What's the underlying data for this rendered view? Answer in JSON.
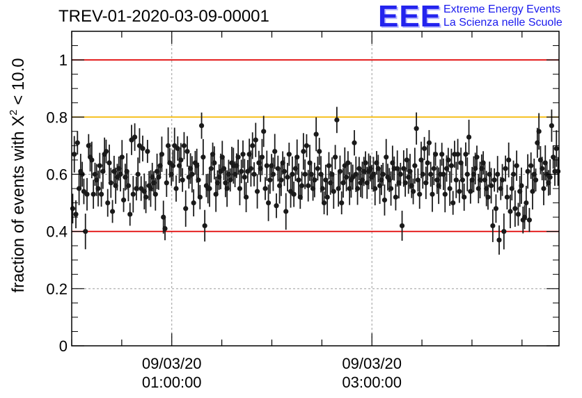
{
  "header": {
    "run_title": "TREV-01-2020-03-09-00001",
    "logo_mark": "EEE",
    "logo_line1": "Extreme Energy Events",
    "logo_line2": "La Scienza nelle Scuole"
  },
  "colors": {
    "red_line": "#e00000",
    "orange_line": "#f5b800",
    "marker": "#1a1a1a",
    "grid": "#9a9a9a"
  },
  "chart_data": {
    "type": "scatter",
    "title": "TREV-01-2020-03-09-00001",
    "ylabel_prefix": "fraction of events with ",
    "ylabel_symbol": "X",
    "ylabel_sup": "2",
    "ylabel_suffix": " < 10.0",
    "xlabel": "",
    "ylim": [
      0,
      1.1
    ],
    "xlim": [
      0,
      4.87
    ],
    "x_unit": "hours after 09/03/20 00:00",
    "yticks": [
      0,
      0.2,
      0.4,
      0.6,
      0.8,
      1
    ],
    "ytick_labels": [
      "0",
      "0.2",
      "0.4",
      "0.6",
      "0.8",
      "1"
    ],
    "xticks_major": [
      {
        "x": 1,
        "date": "09/03/20",
        "time": "01:00:00"
      },
      {
        "x": 3,
        "date": "09/03/20",
        "time": "03:00:00"
      }
    ],
    "grid": true,
    "reference_lines": [
      {
        "y": 1.0,
        "color": "red"
      },
      {
        "y": 0.8,
        "color": "orange"
      },
      {
        "y": 0.4,
        "color": "red"
      }
    ],
    "values": [
      0.48,
      0.67,
      0.46,
      0.71,
      0.55,
      0.61,
      0.6,
      0.54,
      0.4,
      0.53,
      0.7,
      0.66,
      0.65,
      0.53,
      0.6,
      0.58,
      0.55,
      0.63,
      0.53,
      0.61,
      0.67,
      0.68,
      0.5,
      0.64,
      0.57,
      0.47,
      0.61,
      0.56,
      0.59,
      0.62,
      0.6,
      0.66,
      0.51,
      0.59,
      0.61,
      0.56,
      0.46,
      0.72,
      0.53,
      0.73,
      0.55,
      0.6,
      0.7,
      0.55,
      0.69,
      0.54,
      0.52,
      0.68,
      0.56,
      0.55,
      0.59,
      0.57,
      0.53,
      0.61,
      0.59,
      0.63,
      0.67,
      0.45,
      0.41,
      0.57,
      0.7,
      0.64,
      0.6,
      0.63,
      0.7,
      0.55,
      0.69,
      0.63,
      0.65,
      0.58,
      0.7,
      0.48,
      0.68,
      0.59,
      0.62,
      0.6,
      0.5,
      0.64,
      0.63,
      0.58,
      0.52,
      0.77,
      0.66,
      0.42,
      0.56,
      0.55,
      0.55,
      0.62,
      0.67,
      0.64,
      0.53,
      0.57,
      0.59,
      0.61,
      0.66,
      0.62,
      0.57,
      0.55,
      0.6,
      0.58,
      0.64,
      0.63,
      0.6,
      0.63,
      0.66,
      0.55,
      0.61,
      0.67,
      0.59,
      0.52,
      0.61,
      0.67,
      0.62,
      0.7,
      0.6,
      0.72,
      0.54,
      0.64,
      0.62,
      0.66,
      0.75,
      0.55,
      0.63,
      0.5,
      0.58,
      0.63,
      0.6,
      0.68,
      0.49,
      0.62,
      0.56,
      0.58,
      0.64,
      0.61,
      0.47,
      0.59,
      0.67,
      0.54,
      0.6,
      0.53,
      0.62,
      0.66,
      0.58,
      0.52,
      0.56,
      0.68,
      0.6,
      0.7,
      0.56,
      0.64,
      0.6,
      0.55,
      0.58,
      0.74,
      0.62,
      0.68,
      0.6,
      0.55,
      0.5,
      0.58,
      0.52,
      0.63,
      0.57,
      0.6,
      0.54,
      0.66,
      0.79,
      0.55,
      0.61,
      0.5,
      0.57,
      0.63,
      0.59,
      0.64,
      0.55,
      0.58,
      0.59,
      0.71,
      0.6,
      0.55,
      0.62,
      0.57,
      0.58,
      0.61,
      0.64,
      0.57,
      0.61,
      0.62,
      0.59,
      0.6,
      0.55,
      0.64,
      0.62,
      0.56,
      0.58,
      0.6,
      0.51,
      0.66,
      0.59,
      0.58,
      0.55,
      0.64,
      0.62,
      0.52,
      0.62,
      0.57,
      0.6,
      0.42,
      0.62,
      0.57,
      0.65,
      0.59,
      0.61,
      0.56,
      0.54,
      0.63,
      0.76,
      0.58,
      0.53,
      0.65,
      0.6,
      0.69,
      0.57,
      0.64,
      0.71,
      0.6,
      0.53,
      0.62,
      0.67,
      0.58,
      0.56,
      0.6,
      0.67,
      0.6,
      0.53,
      0.62,
      0.65,
      0.55,
      0.63,
      0.5,
      0.67,
      0.58,
      0.67,
      0.54,
      0.64,
      0.58,
      0.52,
      0.67,
      0.6,
      0.73,
      0.54,
      0.58,
      0.6,
      0.62,
      0.66,
      0.55,
      0.58,
      0.62,
      0.64,
      0.58,
      0.55,
      0.52,
      0.6,
      0.56,
      0.42,
      0.58,
      0.48,
      0.6,
      0.37,
      0.55,
      0.58,
      0.4,
      0.62,
      0.52,
      0.65,
      0.47,
      0.55,
      0.6,
      0.48,
      0.63,
      0.46,
      0.54,
      0.56,
      0.44,
      0.45,
      0.5,
      0.61,
      0.44,
      0.63,
      0.54,
      0.6,
      0.58,
      0.71,
      0.75,
      0.65,
      0.62,
      0.55,
      0.64,
      0.6,
      0.57,
      0.59,
      0.77,
      0.66,
      0.61,
      0.69,
      0.61
    ]
  }
}
